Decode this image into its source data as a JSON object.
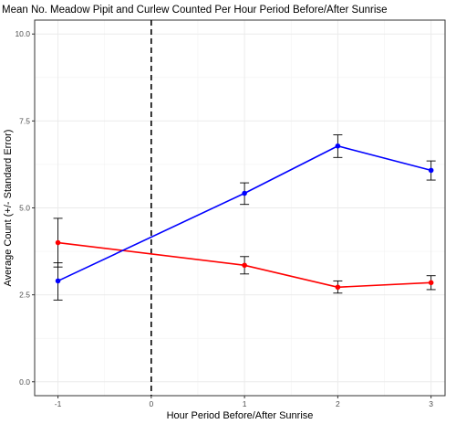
{
  "chart_data": {
    "type": "line",
    "title": "Mean No. Meadow Pipit and Curlew Counted Per Hour Period Before/After Sunrise",
    "xlabel": "Hour Period Before/After Sunrise",
    "ylabel": "Average Count (+/- Standard Error)",
    "x": [
      -1,
      1,
      2,
      3
    ],
    "x_ticks": [
      -1,
      0,
      1,
      2,
      3
    ],
    "x_tick_labels": [
      "-1",
      "0",
      "1",
      "2",
      "3"
    ],
    "xlim": [
      -1.25,
      3.15
    ],
    "y_ticks": [
      0,
      2.5,
      5,
      7.5,
      10
    ],
    "y_tick_labels": [
      "0.0",
      "2.5",
      "5.0",
      "7.5",
      "10.0"
    ],
    "ylim": [
      -0.4,
      10.4
    ],
    "vline": {
      "x": 0,
      "style": "dashed",
      "color": "#000000"
    },
    "grid": true,
    "series": [
      {
        "color": "#ff0000",
        "values": [
          4.0,
          3.35,
          2.72,
          2.85
        ],
        "err_low": [
          3.3,
          3.1,
          2.55,
          2.65
        ],
        "err_high": [
          4.7,
          3.6,
          2.9,
          3.05
        ]
      },
      {
        "color": "#0000ff",
        "values": [
          2.9,
          5.42,
          6.78,
          6.08
        ],
        "err_low": [
          2.35,
          5.1,
          6.45,
          5.8
        ],
        "err_high": [
          3.42,
          5.72,
          7.1,
          6.35
        ]
      }
    ]
  }
}
